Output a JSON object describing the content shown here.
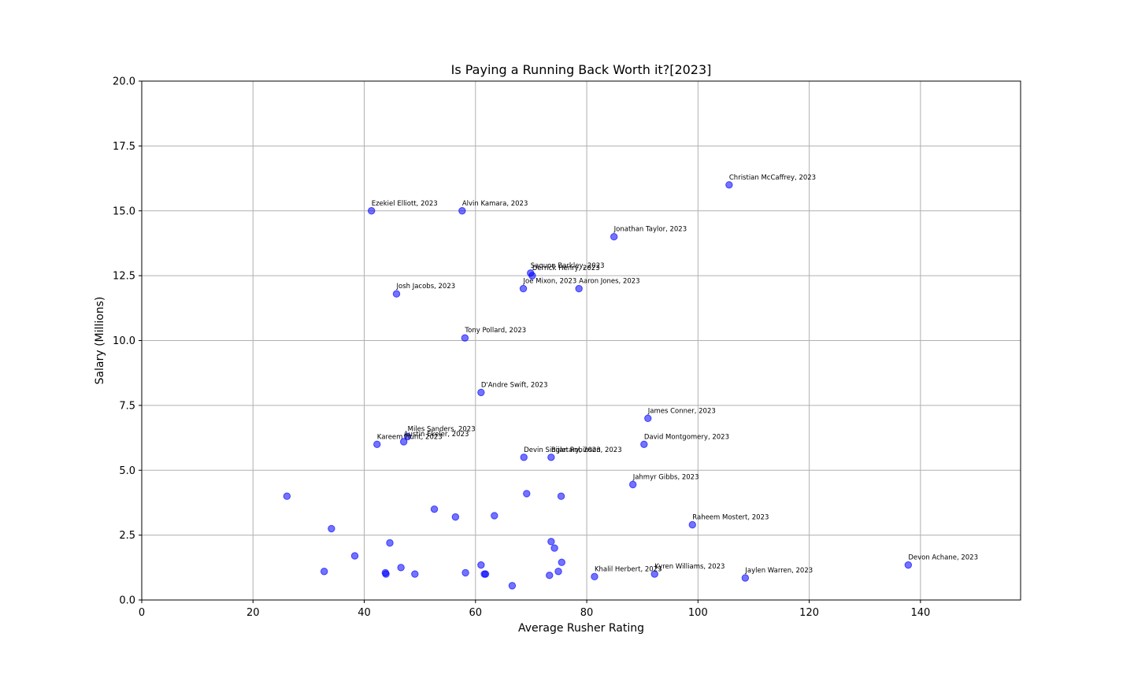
{
  "chart_data": {
    "type": "scatter",
    "title": "Is Paying a Running Back Worth it?[2023]",
    "xlabel": "Average Rusher Rating",
    "ylabel": "Salary (Millions)",
    "xlim": [
      0,
      158
    ],
    "ylim": [
      0,
      20
    ],
    "xticks": [
      0,
      20,
      40,
      60,
      80,
      100,
      120,
      140
    ],
    "yticks": [
      0.0,
      2.5,
      5.0,
      7.5,
      10.0,
      12.5,
      15.0,
      17.5,
      20.0
    ],
    "grid": true,
    "point_color": "#0000ff",
    "points": [
      {
        "x": 105.6,
        "y": 16.0,
        "label": "Christian McCaffrey, 2023"
      },
      {
        "x": 41.3,
        "y": 15.0,
        "label": "Ezekiel Elliott, 2023"
      },
      {
        "x": 57.6,
        "y": 15.0,
        "label": "Alvin Kamara, 2023"
      },
      {
        "x": 84.9,
        "y": 14.0,
        "label": "Jonathan Taylor, 2023"
      },
      {
        "x": 69.9,
        "y": 12.6,
        "label": "Saquon Barkley, 2023"
      },
      {
        "x": 70.2,
        "y": 12.5,
        "label": "Derrick Henry, 2023"
      },
      {
        "x": 68.6,
        "y": 12.0,
        "label": "Joe Mixon, 2023"
      },
      {
        "x": 78.6,
        "y": 12.0,
        "label": "Aaron Jones, 2023"
      },
      {
        "x": 45.8,
        "y": 11.8,
        "label": "Josh Jacobs, 2023"
      },
      {
        "x": 58.1,
        "y": 10.1,
        "label": "Tony Pollard, 2023"
      },
      {
        "x": 61.0,
        "y": 8.0,
        "label": "D'Andre Swift, 2023"
      },
      {
        "x": 91.0,
        "y": 7.0,
        "label": "James Conner, 2023"
      },
      {
        "x": 47.8,
        "y": 6.3,
        "label": "Miles Sanders, 2023"
      },
      {
        "x": 42.3,
        "y": 6.0,
        "label": "Kareem Hunt, 2023"
      },
      {
        "x": 47.1,
        "y": 6.1,
        "label": "Austin Ekeler, 2023"
      },
      {
        "x": 90.3,
        "y": 6.0,
        "label": "David Montgomery, 2023"
      },
      {
        "x": 73.6,
        "y": 5.5,
        "label": "Bijan Robinson, 2023"
      },
      {
        "x": 68.7,
        "y": 5.5,
        "label": "Devin Singletary, 2023"
      },
      {
        "x": 88.3,
        "y": 4.45,
        "label": "Jahmyr Gibbs, 2023"
      },
      {
        "x": 99.0,
        "y": 2.9,
        "label": "Raheem Mostert, 2023"
      },
      {
        "x": 137.8,
        "y": 1.35,
        "label": "Devon Achane, 2023"
      },
      {
        "x": 92.2,
        "y": 1.0,
        "label": "Kyren Williams, 2023"
      },
      {
        "x": 81.4,
        "y": 0.9,
        "label": "Khalil Herbert, 2023"
      },
      {
        "x": 108.5,
        "y": 0.85,
        "label": "Jaylen Warren, 2023"
      },
      {
        "x": 26.1,
        "y": 4.0,
        "label": ""
      },
      {
        "x": 69.2,
        "y": 4.1,
        "label": ""
      },
      {
        "x": 75.4,
        "y": 4.0,
        "label": ""
      },
      {
        "x": 52.6,
        "y": 3.5,
        "label": ""
      },
      {
        "x": 56.4,
        "y": 3.2,
        "label": ""
      },
      {
        "x": 63.4,
        "y": 3.25,
        "label": ""
      },
      {
        "x": 34.1,
        "y": 2.75,
        "label": ""
      },
      {
        "x": 44.6,
        "y": 2.2,
        "label": ""
      },
      {
        "x": 73.6,
        "y": 2.25,
        "label": ""
      },
      {
        "x": 74.2,
        "y": 2.0,
        "label": ""
      },
      {
        "x": 38.3,
        "y": 1.7,
        "label": ""
      },
      {
        "x": 75.5,
        "y": 1.45,
        "label": ""
      },
      {
        "x": 32.8,
        "y": 1.1,
        "label": ""
      },
      {
        "x": 46.6,
        "y": 1.25,
        "label": ""
      },
      {
        "x": 61.0,
        "y": 1.35,
        "label": ""
      },
      {
        "x": 43.8,
        "y": 1.05,
        "label": ""
      },
      {
        "x": 43.9,
        "y": 1.0,
        "label": ""
      },
      {
        "x": 49.1,
        "y": 1.0,
        "label": ""
      },
      {
        "x": 58.2,
        "y": 1.05,
        "label": ""
      },
      {
        "x": 61.6,
        "y": 1.0,
        "label": ""
      },
      {
        "x": 61.8,
        "y": 1.0,
        "label": ""
      },
      {
        "x": 74.9,
        "y": 1.1,
        "label": ""
      },
      {
        "x": 73.3,
        "y": 0.95,
        "label": ""
      },
      {
        "x": 66.6,
        "y": 0.55,
        "label": ""
      }
    ]
  }
}
